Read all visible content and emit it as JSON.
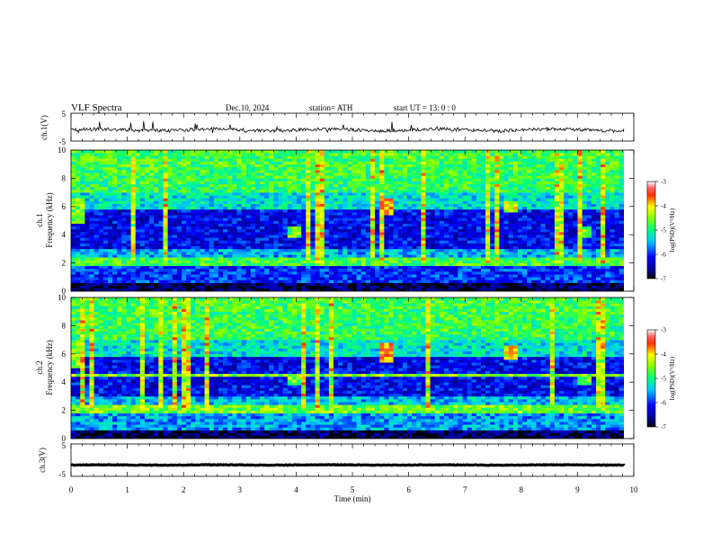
{
  "header": {
    "title": "VLF  Spectra",
    "date": "Dec.10, 2024",
    "station": "station= ATH",
    "start": "start  UT  =    13: 0   : 0"
  },
  "chart_data": [
    {
      "type": "line",
      "name": "ch1-waveform",
      "ylabel": "ch.1(V)",
      "ylim": [
        -5,
        5
      ],
      "yticks": [
        "5",
        "-5"
      ],
      "level": -1.0
    },
    {
      "type": "heatmap",
      "name": "ch1-spectrogram",
      "ylabel": "ch.1\nFrequency  (kHz)",
      "ylabel_lines": [
        "ch.1",
        "Frequency  (kHz)"
      ],
      "ylim": [
        0,
        10
      ],
      "yticks": [
        "0",
        "2",
        "4",
        "6",
        "8",
        "10"
      ],
      "xlim": [
        0,
        10
      ],
      "colorbar": {
        "label": "log(PSD)(V²/Hz)",
        "range": [
          -7,
          -3
        ],
        "ticks": [
          "-3",
          "-4",
          "-5",
          "-6",
          "-7"
        ]
      },
      "bright_events": [
        {
          "t": 0.15,
          "f": [
            4.8,
            6.5
          ],
          "level": -4.6
        },
        {
          "t": 4.0,
          "f": [
            3.8,
            4.5
          ],
          "level": -4.7
        },
        {
          "t": 5.6,
          "f": [
            5.5,
            6.5
          ],
          "level": -3.8
        },
        {
          "t": 7.85,
          "f": [
            5.6,
            6.3
          ],
          "level": -4.2
        },
        {
          "t": 9.1,
          "f": [
            3.8,
            4.6
          ],
          "level": -4.6
        }
      ]
    },
    {
      "type": "heatmap",
      "name": "ch2-spectrogram",
      "ylabel": "ch.2\nFrequency  (kHz)",
      "ylabel_lines": [
        "ch.2",
        "Frequency  (kHz)"
      ],
      "ylim": [
        0,
        10
      ],
      "yticks": [
        "0",
        "2",
        "4",
        "6",
        "8",
        "10"
      ],
      "xlim": [
        0,
        10
      ],
      "colorbar": {
        "label": "log(PSD)(V²/Hz)",
        "range": [
          -7,
          -3
        ],
        "ticks": [
          "-3",
          "-4",
          "-5",
          "-6",
          "-7"
        ]
      },
      "bright_events": [
        {
          "t": 0.15,
          "f": [
            5.0,
            7.0
          ],
          "level": -4.6
        },
        {
          "t": 4.0,
          "f": [
            3.8,
            4.6
          ],
          "level": -4.6
        },
        {
          "t": 5.6,
          "f": [
            5.5,
            6.8
          ],
          "level": -3.7
        },
        {
          "t": 7.85,
          "f": [
            5.6,
            6.5
          ],
          "level": -4.1
        },
        {
          "t": 9.1,
          "f": [
            3.8,
            4.6
          ],
          "level": -4.6
        }
      ]
    },
    {
      "type": "line",
      "name": "ch3-waveform",
      "ylabel": "ch.3(V)",
      "ylim": [
        -5,
        5
      ],
      "yticks": [
        "5",
        "-5"
      ],
      "level": -1.5
    }
  ],
  "xaxis": {
    "label": "Time  (min)",
    "ticks": [
      "0",
      "1",
      "2",
      "3",
      "4",
      "5",
      "6",
      "7",
      "8",
      "9",
      "10"
    ],
    "range": [
      0,
      10
    ]
  }
}
